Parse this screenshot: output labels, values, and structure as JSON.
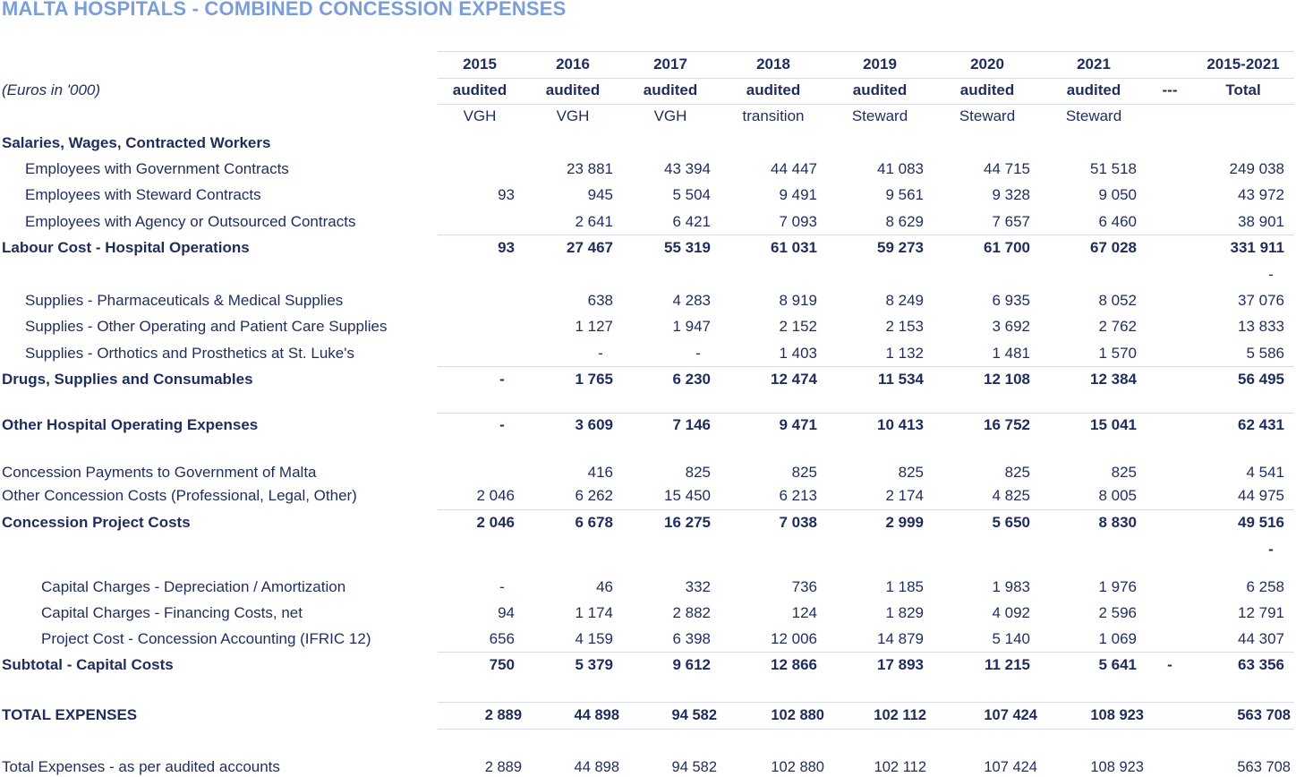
{
  "title": "MALTA HOSPITALS - COMBINED CONCESSION EXPENSES",
  "units_label": "(Euros in '000)",
  "columns": [
    {
      "year": "2015",
      "status": "audited",
      "operator": "VGH"
    },
    {
      "year": "2016",
      "status": "audited",
      "operator": "VGH"
    },
    {
      "year": "2017",
      "status": "audited",
      "operator": "VGH"
    },
    {
      "year": "2018",
      "status": "audited",
      "operator": "transition"
    },
    {
      "year": "2019",
      "status": "audited",
      "operator": "Steward"
    },
    {
      "year": "2020",
      "status": "audited",
      "operator": "Steward"
    },
    {
      "year": "2021",
      "status": "audited",
      "operator": "Steward"
    },
    {
      "year": "",
      "status": "---",
      "operator": ""
    },
    {
      "year": "2015-2021",
      "status": "Total",
      "operator": ""
    }
  ],
  "rows": [
    {
      "label": "Salaries, Wages, Contracted Workers",
      "bold": true,
      "indent": 0,
      "values": [
        "",
        "",
        "",
        "",
        "",
        "",
        "",
        "",
        ""
      ]
    },
    {
      "label": "Employees with Government Contracts",
      "bold": false,
      "indent": 1,
      "values": [
        "",
        "23 881",
        "43 394",
        "44 447",
        "41 083",
        "44 715",
        "51 518",
        "",
        "249 038"
      ]
    },
    {
      "label": "Employees with Steward Contracts",
      "bold": false,
      "indent": 1,
      "values": [
        "93",
        "945",
        "5 504",
        "9 491",
        "9 561",
        "9 328",
        "9 050",
        "",
        "43 972"
      ]
    },
    {
      "label": "Employees with Agency or Outsourced Contracts",
      "bold": false,
      "indent": 1,
      "values": [
        "",
        "2 641",
        "6 421",
        "7 093",
        "8 629",
        "7 657",
        "6 460",
        "",
        "38 901"
      ]
    },
    {
      "label": "Labour Cost - Hospital Operations",
      "bold": true,
      "indent": 0,
      "values": [
        "93",
        "27 467",
        "55 319",
        "61 031",
        "59 273",
        "61 700",
        "67 028",
        "",
        "331 911"
      ]
    },
    {
      "label": "",
      "bold": false,
      "indent": 0,
      "values": [
        "",
        "",
        "",
        "",
        "",
        "",
        "",
        "",
        "-"
      ]
    },
    {
      "label": "Supplies - Pharmaceuticals & Medical Supplies",
      "bold": false,
      "indent": 1,
      "values": [
        "",
        "638",
        "4 283",
        "8 919",
        "8 249",
        "6 935",
        "8 052",
        "",
        "37 076"
      ]
    },
    {
      "label": "Supplies - Other Operating and Patient Care Supplies",
      "bold": false,
      "indent": 1,
      "values": [
        "",
        "1 127",
        "1 947",
        "2 152",
        "2 153",
        "3 692",
        "2 762",
        "",
        "13 833"
      ]
    },
    {
      "label": "Supplies - Orthotics and Prosthetics at St. Luke's",
      "bold": false,
      "indent": 1,
      "values": [
        "",
        "-",
        "-",
        "1 403",
        "1 132",
        "1 481",
        "1 570",
        "",
        "5 586"
      ]
    },
    {
      "label": "Drugs, Supplies and Consumables",
      "bold": true,
      "indent": 0,
      "values": [
        "-",
        "1 765",
        "6 230",
        "12 474",
        "11 534",
        "12 108",
        "12 384",
        "",
        "56 495"
      ]
    },
    {
      "label": "Other Hospital Operating Expenses",
      "bold": true,
      "indent": 0,
      "values": [
        "-",
        "3 609",
        "7 146",
        "9 471",
        "10 413",
        "16 752",
        "15 041",
        "",
        "62 431"
      ]
    },
    {
      "label": "Concession Payments to Government of Malta",
      "bold": false,
      "indent": 0,
      "values": [
        "",
        "416",
        "825",
        "825",
        "825",
        "825",
        "825",
        "",
        "4 541"
      ]
    },
    {
      "label": "Other Concession Costs (Professional, Legal, Other)",
      "bold": false,
      "indent": 0,
      "values": [
        "2 046",
        "6 262",
        "15 450",
        "6 213",
        "2 174",
        "4 825",
        "8 005",
        "",
        "44 975"
      ]
    },
    {
      "label": "Concession Project Costs",
      "bold": true,
      "indent": 0,
      "values": [
        "2 046",
        "6 678",
        "16 275",
        "7 038",
        "2 999",
        "5 650",
        "8 830",
        "",
        "49 516"
      ]
    },
    {
      "label": "",
      "bold": true,
      "indent": 0,
      "values": [
        "",
        "",
        "",
        "",
        "",
        "",
        "",
        "",
        "-"
      ]
    },
    {
      "label": "Capital Charges - Depreciation / Amortization",
      "bold": false,
      "indent": 2,
      "values": [
        "-",
        "46",
        "332",
        "736",
        "1 185",
        "1 983",
        "1 976",
        "",
        "6 258"
      ]
    },
    {
      "label": "Capital Charges - Financing Costs, net",
      "bold": false,
      "indent": 2,
      "values": [
        "94",
        "1 174",
        "2 882",
        "124",
        "1 829",
        "4 092",
        "2 596",
        "",
        "12 791"
      ]
    },
    {
      "label": "Project Cost - Concession Accounting (IFRIC 12)",
      "bold": false,
      "indent": 2,
      "values": [
        "656",
        "4 159",
        "6 398",
        "12 006",
        "14 879",
        "5 140",
        "1 069",
        "",
        "44 307"
      ]
    },
    {
      "label": "Subtotal - Capital Costs",
      "bold": true,
      "indent": 0,
      "values": [
        "750",
        "5 379",
        "9 612",
        "12 866",
        "17 893",
        "11 215",
        "5 641",
        "-",
        "63 356"
      ]
    },
    {
      "label": "TOTAL EXPENSES",
      "bold": true,
      "indent": 0,
      "values": [
        "2 889",
        "44 898",
        "94 582",
        "102 880",
        "102 112",
        "107 424",
        "108 923",
        "",
        "563 708"
      ]
    },
    {
      "label": "Total Expenses - as per audited accounts",
      "bold": false,
      "indent": 0,
      "values": [
        "2 889",
        "44 898",
        "94 582",
        "102 880",
        "102 112",
        "107 424",
        "108 923",
        "",
        "563 708"
      ]
    }
  ]
}
